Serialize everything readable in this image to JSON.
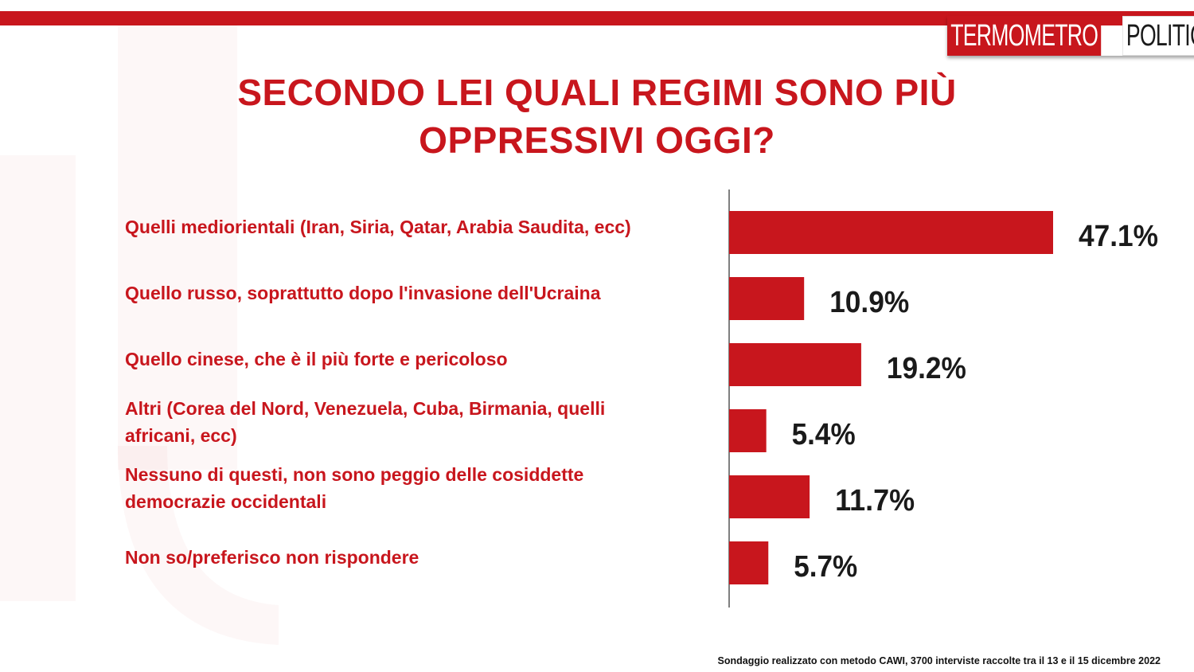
{
  "brand": {
    "logo_part1": "TERMOMETRO",
    "logo_part2": "POLITICO",
    "accent": "#c8161d"
  },
  "title_line1": "SECONDO LEI QUALI REGIMI SONO PIÙ",
  "title_line2": "OPPRESSIVI OGGI?",
  "chart_data": {
    "type": "bar",
    "orientation": "horizontal",
    "categories": [
      [
        "Quelli mediorientali (Iran, Siria, Qatar, Arabia Saudita, ecc)"
      ],
      [
        "Quello russo, soprattutto dopo l'invasione dell'Ucraina"
      ],
      [
        "Quello cinese, che è il più forte e pericoloso"
      ],
      [
        "Altri (Corea del Nord, Venezuela, Cuba, Birmania, quelli",
        "africani, ecc)"
      ],
      [
        "Nessuno di questi, non sono peggio delle cosiddette",
        "democrazie occidentali"
      ],
      [
        "Non so/preferisco non rispondere"
      ]
    ],
    "values": [
      47.1,
      10.9,
      19.2,
      5.4,
      11.7,
      5.7
    ],
    "value_labels": [
      "47.1%",
      "10.9%",
      "19.2%",
      "5.4%",
      "11.7%",
      "5.7%"
    ],
    "bar_color": "#c8161d",
    "xlim": [
      0,
      50
    ],
    "grid": false,
    "legend": "none"
  },
  "footnote": "Sondaggio realizzato con metodo CAWI, 3700 interviste raccolte tra il 13 e il 15 dicembre 2022"
}
